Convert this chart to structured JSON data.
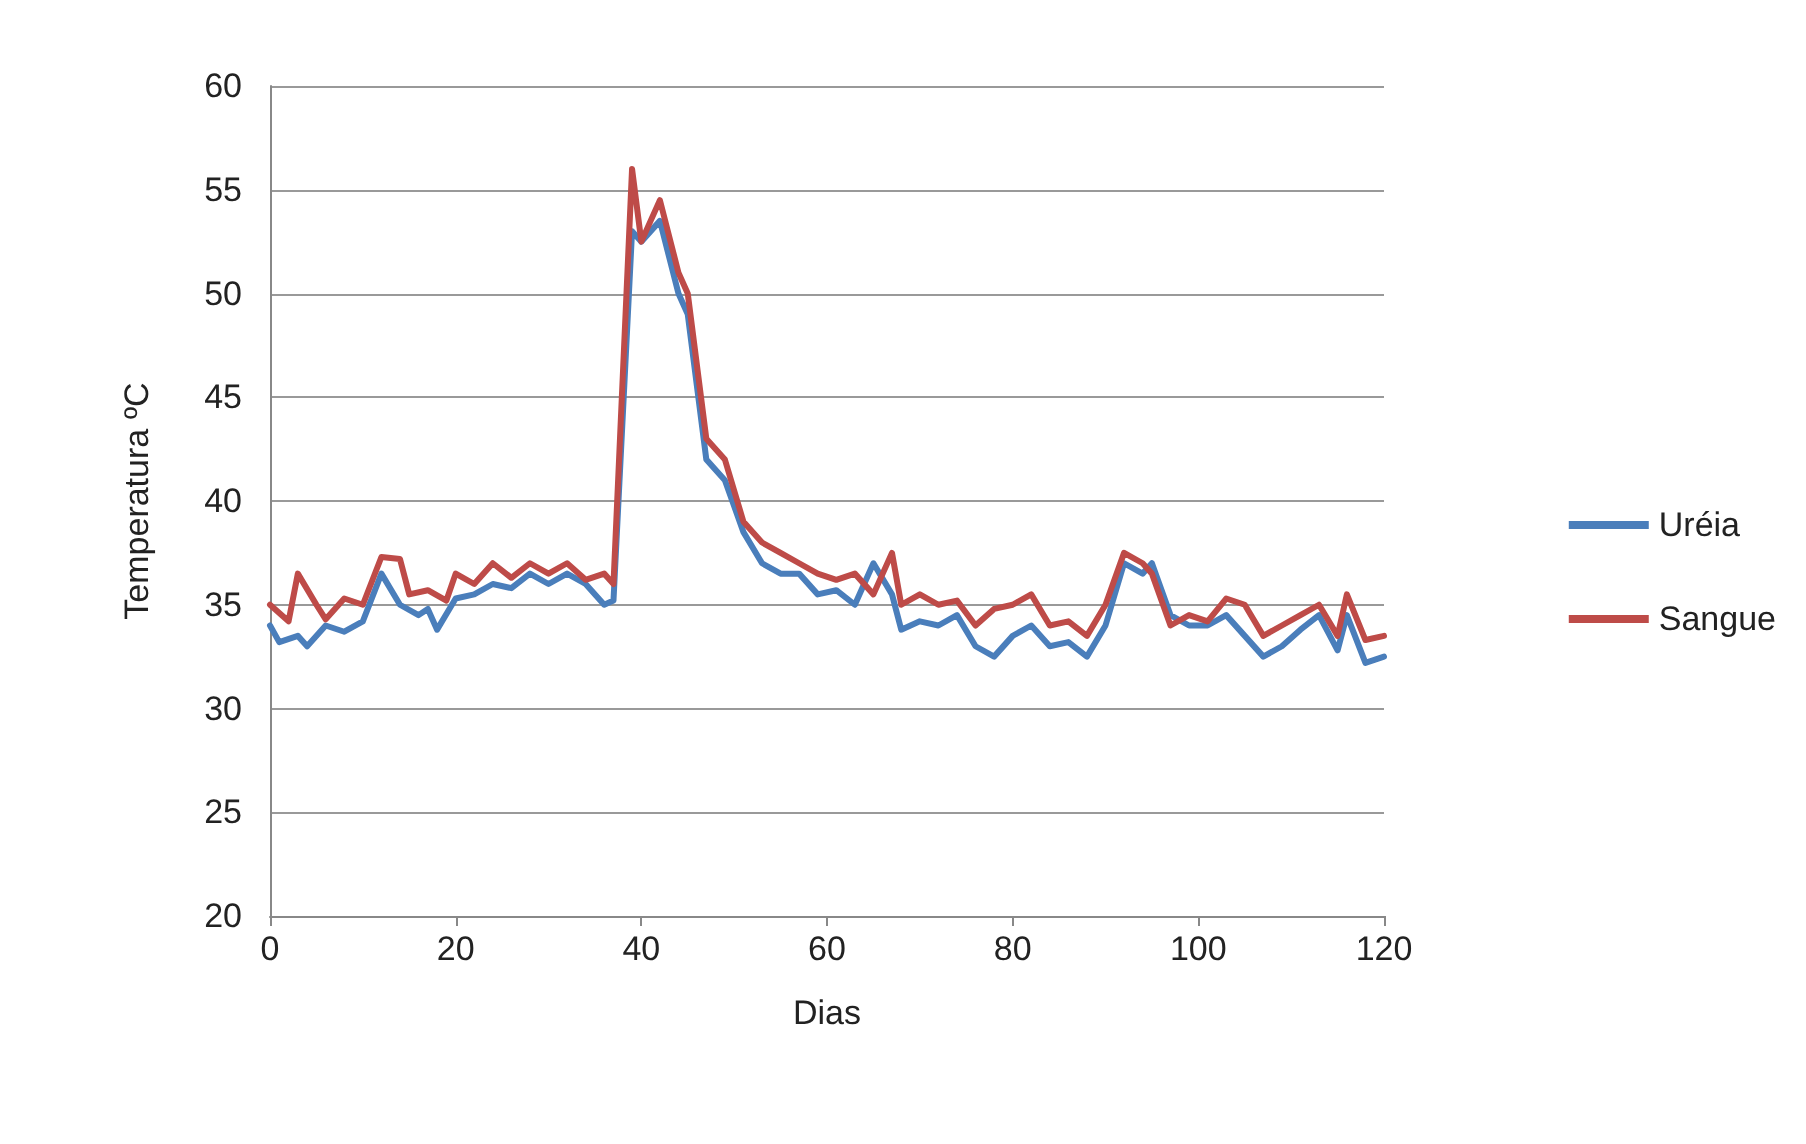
{
  "chart_data": {
    "type": "line",
    "xlabel": "Dias",
    "ylabel": "Temperatura ºC",
    "xlim": [
      0,
      120
    ],
    "xticks": [
      0,
      20,
      40,
      60,
      80,
      100,
      120
    ],
    "ylim": [
      20,
      60
    ],
    "yticks": [
      20,
      25,
      30,
      35,
      40,
      45,
      50,
      55,
      60
    ],
    "grid": "y",
    "legend": "right",
    "marker": "none",
    "line_style": "solid",
    "series": [
      {
        "name": "Uréia",
        "color": "#4a7ebb",
        "x": [
          0,
          1,
          3,
          4,
          6,
          8,
          10,
          12,
          14,
          16,
          17,
          18,
          20,
          22,
          24,
          26,
          28,
          30,
          32,
          34,
          36,
          37,
          39,
          40,
          42,
          44,
          45,
          47,
          49,
          51,
          53,
          55,
          57,
          59,
          61,
          63,
          65,
          67,
          68,
          70,
          72,
          74,
          76,
          78,
          80,
          82,
          84,
          86,
          88,
          90,
          92,
          94,
          95,
          97,
          99,
          101,
          103,
          105,
          107,
          109,
          111,
          113,
          115,
          116,
          118,
          120
        ],
        "values": [
          34,
          33.2,
          33.5,
          33,
          34,
          33.7,
          34.2,
          36.5,
          35,
          34.5,
          34.8,
          33.8,
          35.3,
          35.5,
          36,
          35.8,
          36.5,
          36,
          36.5,
          36,
          35,
          35.2,
          53,
          52.5,
          53.5,
          50,
          49,
          42,
          41,
          38.5,
          37,
          36.5,
          36.5,
          35.5,
          35.7,
          35,
          37,
          35.5,
          33.8,
          34.2,
          34,
          34.5,
          33,
          32.5,
          33.5,
          34,
          33,
          33.2,
          32.5,
          34,
          37,
          36.5,
          37,
          34.5,
          34,
          34,
          34.5,
          33.5,
          32.5,
          33,
          33.8,
          34.5,
          32.8,
          34.5,
          32.2,
          32.5
        ]
      },
      {
        "name": "Sangue",
        "color": "#be4b48",
        "x": [
          0,
          2,
          3,
          5,
          6,
          8,
          10,
          12,
          14,
          15,
          17,
          19,
          20,
          22,
          24,
          26,
          28,
          30,
          32,
          34,
          36,
          37,
          39,
          40,
          42,
          44,
          45,
          47,
          49,
          51,
          53,
          55,
          57,
          59,
          61,
          63,
          65,
          67,
          68,
          70,
          72,
          74,
          76,
          78,
          80,
          82,
          84,
          86,
          88,
          90,
          92,
          94,
          95,
          97,
          99,
          101,
          103,
          105,
          107,
          109,
          111,
          113,
          115,
          116,
          118,
          120
        ],
        "values": [
          35,
          34.2,
          36.5,
          35,
          34.3,
          35.3,
          35,
          37.3,
          37.2,
          35.5,
          35.7,
          35.2,
          36.5,
          36,
          37,
          36.3,
          37,
          36.5,
          37,
          36.2,
          36.5,
          36,
          56,
          52.5,
          54.5,
          51,
          50,
          43,
          42,
          39,
          38,
          37.5,
          37,
          36.5,
          36.2,
          36.5,
          35.5,
          37.5,
          35,
          35.5,
          35,
          35.2,
          34,
          34.8,
          35,
          35.5,
          34,
          34.2,
          33.5,
          35,
          37.5,
          37,
          36.5,
          34,
          34.5,
          34.2,
          35.3,
          35,
          33.5,
          34,
          34.5,
          35,
          33.5,
          35.5,
          33.3,
          33.5
        ]
      }
    ]
  }
}
